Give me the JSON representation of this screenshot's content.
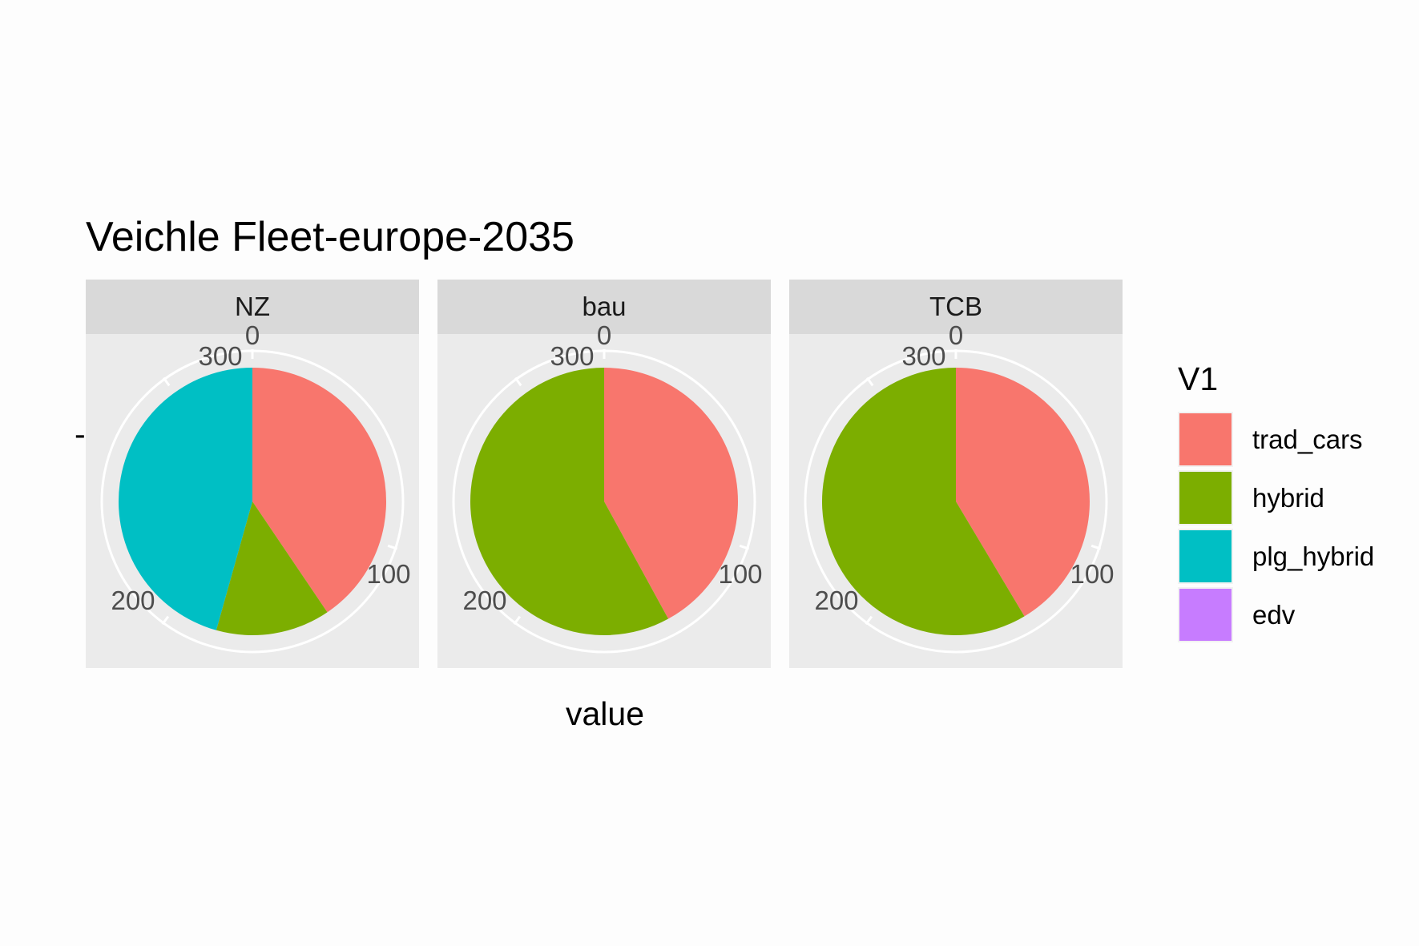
{
  "chart_data": {
    "type": "pie",
    "title": "Veichle Fleet-europe-2035",
    "xlabel": "value",
    "ylabel": "",
    "y_tick_labels": [
      "-"
    ],
    "theta_range": [
      0,
      333
    ],
    "theta_ticks": [
      "0",
      "100",
      "200",
      "300"
    ],
    "series_order": [
      "trad_cars",
      "hybrid",
      "plg_hybrid",
      "edv"
    ],
    "legend": {
      "title": "V1",
      "placement": "right",
      "entries": [
        {
          "label": "trad_cars",
          "color": "#F8766D"
        },
        {
          "label": "hybrid",
          "color": "#7CAE00"
        },
        {
          "label": "plg_hybrid",
          "color": "#00BFC4"
        },
        {
          "label": "edv",
          "color": "#C77CFF"
        }
      ]
    },
    "facets": [
      {
        "name": "NZ",
        "values": {
          "trad_cars": 135,
          "hybrid": 46,
          "plg_hybrid": 152,
          "edv": 0
        }
      },
      {
        "name": "bau",
        "values": {
          "trad_cars": 140,
          "hybrid": 193,
          "plg_hybrid": 0,
          "edv": 0
        }
      },
      {
        "name": "TCB",
        "values": {
          "trad_cars": 138,
          "hybrid": 195,
          "plg_hybrid": 0,
          "edv": 0
        }
      }
    ]
  }
}
